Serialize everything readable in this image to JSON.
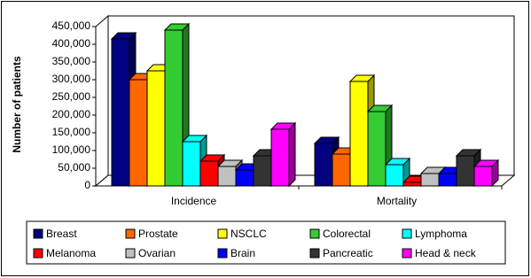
{
  "chart_data": {
    "type": "bar3d",
    "y_label": "Number of patients",
    "categories": [
      "Incidence",
      "Mortality"
    ],
    "series": [
      {
        "name": "Breast",
        "color": "#000080",
        "values": [
          415000,
          120000
        ]
      },
      {
        "name": "Prostate",
        "color": "#ff6600",
        "values": [
          300000,
          90000
        ]
      },
      {
        "name": "NSCLC",
        "color": "#ffff00",
        "values": [
          325000,
          295000
        ]
      },
      {
        "name": "Colorectal",
        "color": "#33cc33",
        "values": [
          440000,
          210000
        ]
      },
      {
        "name": "Lymphoma",
        "color": "#00ffff",
        "values": [
          125000,
          60000
        ]
      },
      {
        "name": "Melanoma",
        "color": "#ff0000",
        "values": [
          70000,
          10000
        ]
      },
      {
        "name": "Ovarian",
        "color": "#c0c0c0",
        "values": [
          55000,
          35000
        ]
      },
      {
        "name": "Brain",
        "color": "#0000ff",
        "values": [
          45000,
          35000
        ]
      },
      {
        "name": "Pancreatic",
        "color": "#333333",
        "values": [
          85000,
          85000
        ]
      },
      {
        "name": "Head & neck",
        "color": "#ff00ff",
        "values": [
          160000,
          55000
        ]
      }
    ],
    "ylim": [
      0,
      450000
    ],
    "yticks": [
      0,
      {
        "value": 50000,
        "label": "50,000"
      },
      {
        "value": 100000,
        "label": "100,000"
      },
      {
        "value": 150000,
        "label": "150,000"
      },
      {
        "value": 200000,
        "label": "200,000"
      },
      {
        "value": 250000,
        "label": "250,000"
      },
      {
        "value": 300000,
        "label": "300,000"
      },
      {
        "value": 350000,
        "label": "350,000"
      },
      {
        "value": 400000,
        "label": "400,000"
      },
      {
        "value": 450000,
        "label": "450,000"
      }
    ],
    "legend": "bottom"
  }
}
